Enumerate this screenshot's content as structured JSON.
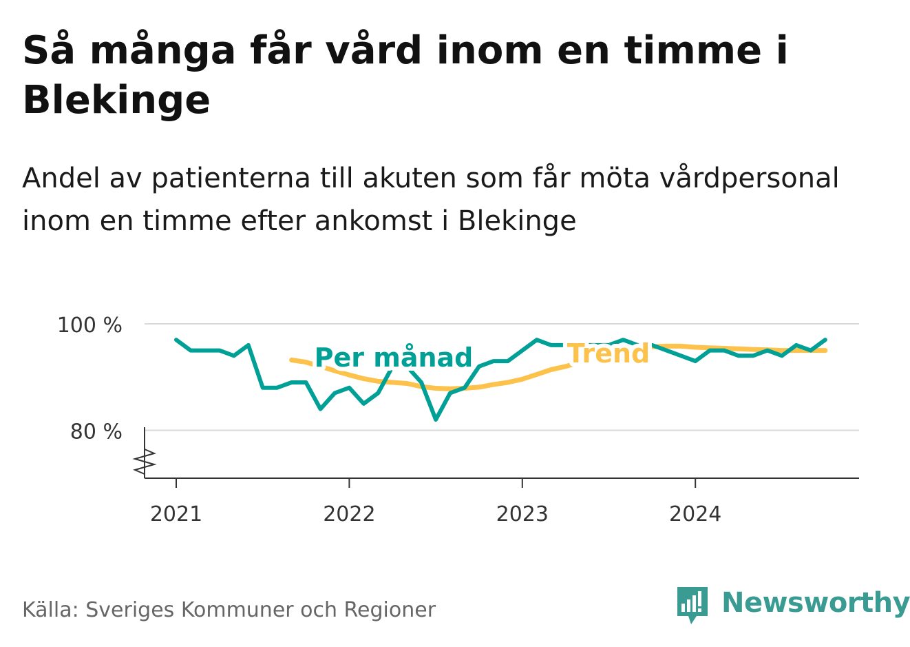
{
  "title": "Så många får vård inom en timme i Blekinge",
  "subtitle": "Andel av patienterna till akuten som får möta vårdpersonal inom en timme efter ankomst i Blekinge",
  "source": "Källa: Sveriges Kommuner och Regioner",
  "brand": {
    "name": "Newsworthy",
    "icon": "newsworthy-logo-icon",
    "color": "#3a9b93"
  },
  "chart_data": {
    "type": "line",
    "x_unit": "month",
    "x": [
      "2021-01",
      "2021-02",
      "2021-03",
      "2021-04",
      "2021-05",
      "2021-06",
      "2021-07",
      "2021-08",
      "2021-09",
      "2021-10",
      "2021-11",
      "2021-12",
      "2022-01",
      "2022-02",
      "2022-03",
      "2022-04",
      "2022-05",
      "2022-06",
      "2022-07",
      "2022-08",
      "2022-09",
      "2022-10",
      "2022-11",
      "2022-12",
      "2023-01",
      "2023-02",
      "2023-03",
      "2023-04",
      "2023-05",
      "2023-06",
      "2023-07",
      "2023-08",
      "2023-09",
      "2023-10",
      "2023-11",
      "2023-12",
      "2024-01",
      "2024-02",
      "2024-03",
      "2024-04",
      "2024-05",
      "2024-06",
      "2024-07",
      "2024-08",
      "2024-09",
      "2024-10"
    ],
    "series": [
      {
        "name": "Per månad",
        "color": "#00a096",
        "values": [
          97,
          95,
          95,
          95,
          94,
          96,
          88,
          88,
          89,
          89,
          84,
          87,
          88,
          85,
          87,
          92,
          92,
          89,
          82,
          87,
          88,
          92,
          93,
          93,
          95,
          97,
          96,
          96,
          96,
          96,
          96,
          97,
          96,
          96,
          95,
          94,
          93,
          95,
          95,
          94,
          94,
          95,
          94,
          96,
          95,
          97
        ]
      },
      {
        "name": "Trend",
        "color": "#fcc24c",
        "values": [
          null,
          null,
          null,
          null,
          null,
          null,
          null,
          null,
          93.2,
          92.8,
          92.0,
          91.2,
          90.4,
          89.7,
          89.2,
          89.0,
          88.8,
          88.2,
          87.9,
          87.8,
          87.9,
          88.1,
          88.6,
          89.0,
          89.6,
          90.5,
          91.4,
          92.0,
          92.8,
          93.6,
          94.4,
          95.0,
          95.4,
          95.7,
          95.8,
          95.8,
          95.6,
          95.5,
          95.4,
          95.3,
          95.2,
          95.1,
          95.0,
          95.0,
          95.0,
          95.0
        ]
      }
    ],
    "series_labels": [
      "Per månad",
      "Trend"
    ],
    "y_ticks": [
      {
        "value": 80,
        "label": "80 %"
      },
      {
        "value": 100,
        "label": "100 %"
      }
    ],
    "x_ticks": [
      {
        "value": "2021-01",
        "label": "2021"
      },
      {
        "value": "2022-01",
        "label": "2022"
      },
      {
        "value": "2023-01",
        "label": "2023"
      },
      {
        "value": "2024-01",
        "label": "2024"
      }
    ],
    "ylim": [
      71,
      100
    ],
    "y_axis_break": true,
    "grid": true
  }
}
